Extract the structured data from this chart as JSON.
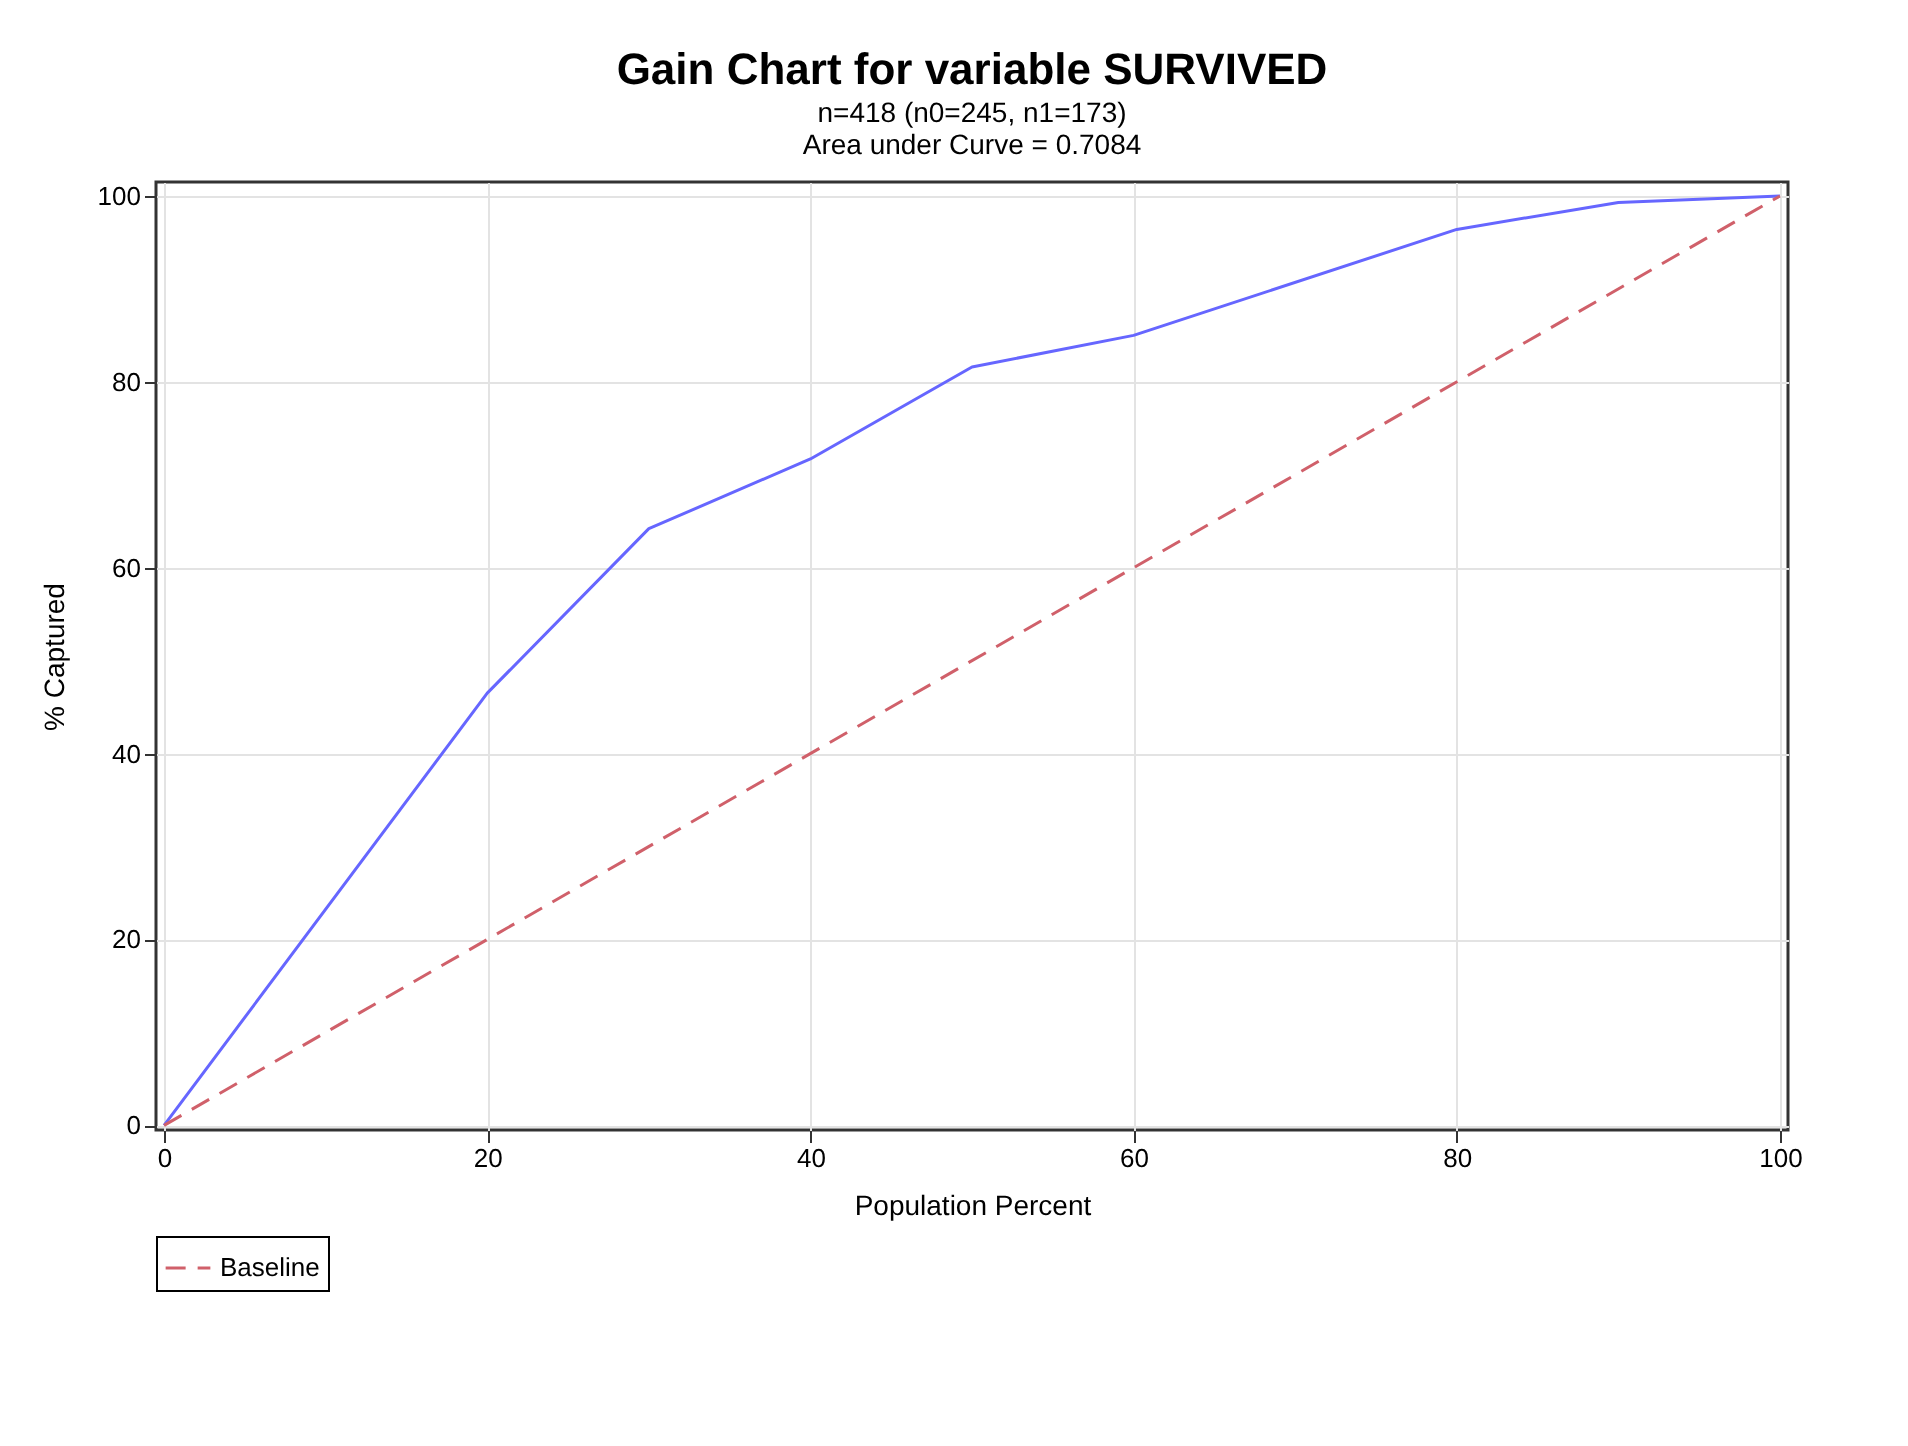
{
  "chart_data": {
    "type": "line",
    "title": "Gain Chart for variable SURVIVED",
    "subtitle": [
      "n=418  (n0=245, n1=173)",
      "Area under Curve = 0.7084"
    ],
    "xlabel": "Population Percent",
    "ylabel": "% Captured",
    "x": [
      0,
      20,
      30,
      40,
      50,
      60,
      80,
      90,
      100
    ],
    "series": [
      {
        "color": "#6666ff",
        "line_style": "solid",
        "values": [
          0,
          46.5,
          64.2,
          71.7,
          81.6,
          85.0,
          96.4,
          99.3,
          100
        ]
      },
      {
        "name": "Baseline",
        "color": "#d0606a",
        "line_style": "dashed",
        "x": [
          0,
          100
        ],
        "values": [
          0,
          100
        ]
      }
    ],
    "xlim": [
      -0.5,
      100.5
    ],
    "ylim": [
      -0.5,
      101.5
    ],
    "xticks": [
      0,
      20,
      40,
      60,
      80,
      100
    ],
    "yticks": [
      0,
      20,
      40,
      60,
      80,
      100
    ],
    "grid": true,
    "legend": "bottom",
    "marker": "none"
  }
}
